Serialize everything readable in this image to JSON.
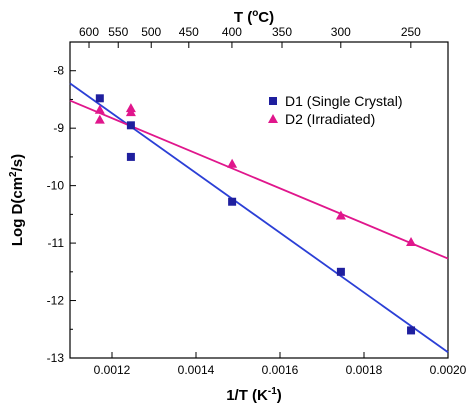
{
  "chart_data": {
    "type": "scatter",
    "xlabel": "1/T (K",
    "xlabel_sup": "-1",
    "xlabel_end": ")",
    "ylabel": "Log D(cm",
    "ylabel_sup": "2",
    "ylabel_end": "/s)",
    "top_axis_label": "T (",
    "top_axis_label_sup": "o",
    "top_axis_label_end": "C)",
    "xlim": [
      0.0011,
      0.002
    ],
    "ylim": [
      -13,
      -7.5
    ],
    "x_ticks": [
      {
        "value": 0.0012,
        "label": "0.0012"
      },
      {
        "value": 0.0014,
        "label": "0.0014"
      },
      {
        "value": 0.0016,
        "label": "0.0016"
      },
      {
        "value": 0.0018,
        "label": "0.0018"
      },
      {
        "value": 0.002,
        "label": "0.0020"
      }
    ],
    "y_ticks": [
      {
        "value": -8,
        "label": "-8"
      },
      {
        "value": -9,
        "label": "-9"
      },
      {
        "value": -10,
        "label": "-10"
      },
      {
        "value": -11,
        "label": "-11"
      },
      {
        "value": -12,
        "label": "-12"
      },
      {
        "value": -13,
        "label": "-13"
      }
    ],
    "top_ticks": [
      {
        "value": 600,
        "label": "600"
      },
      {
        "value": 550,
        "label": "550"
      },
      {
        "value": 500,
        "label": "500"
      },
      {
        "value": 450,
        "label": "450"
      },
      {
        "value": 400,
        "label": "400"
      },
      {
        "value": 350,
        "label": "350"
      },
      {
        "value": 300,
        "label": "300"
      },
      {
        "value": 250,
        "label": "250"
      }
    ],
    "legend_position": "top-right",
    "series": [
      {
        "name": "D1 (Single Crystal)",
        "marker": "square",
        "color": "#1f1f9e",
        "line_color": "#2b3fd6",
        "points": [
          {
            "x": 0.001171,
            "y": -8.48
          },
          {
            "x": 0.001245,
            "y": -8.95
          },
          {
            "x": 0.001245,
            "y": -9.5
          },
          {
            "x": 0.001486,
            "y": -10.28
          },
          {
            "x": 0.001745,
            "y": -11.5
          },
          {
            "x": 0.001912,
            "y": -12.52
          }
        ],
        "fit": [
          {
            "x": 0.0011,
            "y": -8.22
          },
          {
            "x": 0.002,
            "y": -12.9
          }
        ]
      },
      {
        "name": "D2 (Irradiated)",
        "marker": "triangle",
        "color": "#e0168c",
        "line_color": "#e0168c",
        "points": [
          {
            "x": 0.001171,
            "y": -8.68
          },
          {
            "x": 0.001171,
            "y": -8.85
          },
          {
            "x": 0.001245,
            "y": -8.65
          },
          {
            "x": 0.001245,
            "y": -8.72
          },
          {
            "x": 0.001486,
            "y": -9.62
          },
          {
            "x": 0.001745,
            "y": -10.52
          },
          {
            "x": 0.001912,
            "y": -10.98
          }
        ],
        "fit": [
          {
            "x": 0.0011,
            "y": -8.52
          },
          {
            "x": 0.002,
            "y": -11.27
          }
        ]
      }
    ]
  }
}
